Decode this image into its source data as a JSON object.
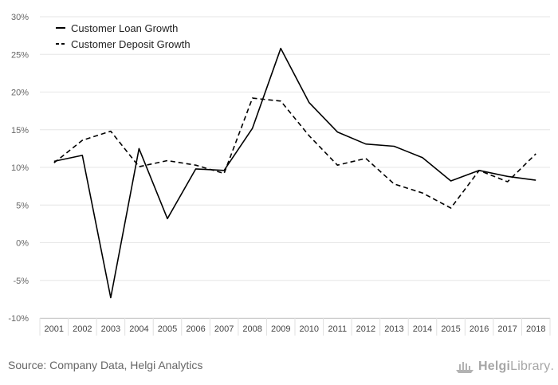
{
  "chart_data": {
    "type": "line",
    "title": "",
    "xlabel": "",
    "ylabel": "",
    "categories": [
      "2001",
      "2002",
      "2003",
      "2004",
      "2005",
      "2006",
      "2007",
      "2008",
      "2009",
      "2010",
      "2011",
      "2012",
      "2013",
      "2014",
      "2015",
      "2016",
      "2017",
      "2018"
    ],
    "y_ticks": [
      "-10%",
      "-5%",
      "0%",
      "5%",
      "10%",
      "15%",
      "20%",
      "25%",
      "30%"
    ],
    "ylim": [
      -10,
      30
    ],
    "grid": true,
    "legend_position": "top-left",
    "series": [
      {
        "name": "Customer Loan Growth",
        "style": "solid",
        "color": "#000000",
        "values": [
          10.8,
          11.6,
          -7.3,
          12.5,
          3.2,
          9.8,
          9.6,
          15.2,
          25.8,
          18.6,
          14.7,
          13.1,
          12.8,
          11.3,
          8.2,
          9.6,
          8.8,
          8.3
        ]
      },
      {
        "name": "Customer Deposit Growth",
        "style": "dashed",
        "color": "#000000",
        "values": [
          10.6,
          13.6,
          14.8,
          10.1,
          10.9,
          10.3,
          9.2,
          19.2,
          18.8,
          14.2,
          10.3,
          11.2,
          7.8,
          6.6,
          4.6,
          9.6,
          8.1,
          11.8
        ]
      }
    ]
  },
  "footer": {
    "source": "Source: Company Data, Helgi Analytics",
    "brand_name": "Helgi",
    "brand_suffix": "Library",
    "brand_dot": "."
  }
}
